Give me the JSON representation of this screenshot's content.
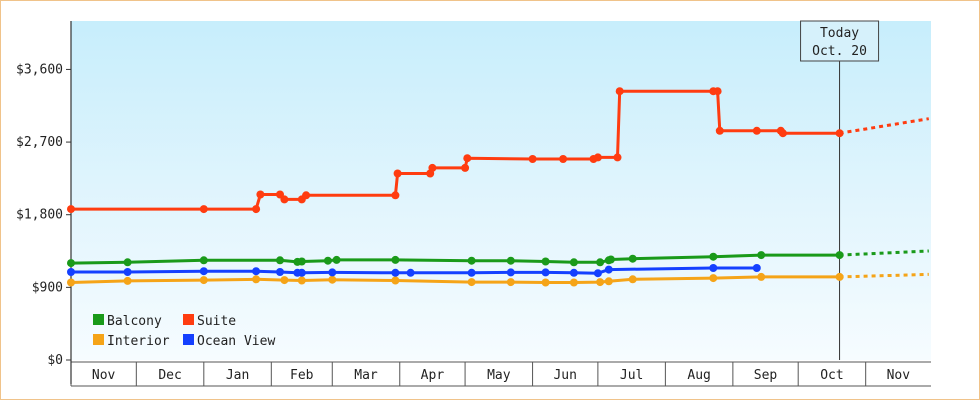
{
  "chart_data": {
    "type": "line",
    "x_axis_type": "date",
    "months": [
      "Nov",
      "Dec",
      "Jan",
      "Feb",
      "Mar",
      "Apr",
      "May",
      "Jun",
      "Jul",
      "Aug",
      "Sep",
      "Oct",
      "Nov"
    ],
    "x_range": [
      "2014-11-01",
      "2015-11-30"
    ],
    "y_ticks": [
      "$0",
      "$900",
      "$1,800",
      "$2,700",
      "$3,600"
    ],
    "ylim": [
      0,
      4200
    ],
    "y_format": "currency-usd",
    "background": "sky-blue gradient",
    "grid": false,
    "legend_position": "bottom-left",
    "today": {
      "title": "Today",
      "date_label": "Oct. 20",
      "date": "2015-10-20"
    },
    "series": [
      {
        "name": "Balcony",
        "color": "#1a9a1a",
        "data": [
          [
            "2014-11-01",
            1200
          ],
          [
            "2014-11-27",
            1210
          ],
          [
            "2015-01-01",
            1235
          ],
          [
            "2015-02-05",
            1235
          ],
          [
            "2015-02-13",
            1215
          ],
          [
            "2015-02-15",
            1220
          ],
          [
            "2015-02-27",
            1230
          ],
          [
            "2015-03-03",
            1240
          ],
          [
            "2015-03-30",
            1240
          ],
          [
            "2015-05-04",
            1230
          ],
          [
            "2015-05-22",
            1230
          ],
          [
            "2015-06-07",
            1220
          ],
          [
            "2015-06-20",
            1210
          ],
          [
            "2015-07-02",
            1210
          ],
          [
            "2015-07-06",
            1235
          ],
          [
            "2015-07-07",
            1245
          ],
          [
            "2015-07-17",
            1255
          ],
          [
            "2015-08-23",
            1280
          ],
          [
            "2015-09-14",
            1300
          ],
          [
            "2015-10-20",
            1300
          ]
        ],
        "forecast": [
          [
            "2015-10-20",
            1300
          ],
          [
            "2015-11-30",
            1350
          ]
        ]
      },
      {
        "name": "Suite",
        "color": "#ff3c10",
        "data": [
          [
            "2014-11-01",
            1870
          ],
          [
            "2015-01-01",
            1870
          ],
          [
            "2015-01-25",
            1870
          ],
          [
            "2015-01-27",
            2050
          ],
          [
            "2015-02-05",
            2050
          ],
          [
            "2015-02-07",
            1990
          ],
          [
            "2015-02-15",
            1990
          ],
          [
            "2015-02-17",
            2040
          ],
          [
            "2015-03-30",
            2040
          ],
          [
            "2015-03-31",
            2310
          ],
          [
            "2015-04-15",
            2310
          ],
          [
            "2015-04-16",
            2380
          ],
          [
            "2015-05-01",
            2380
          ],
          [
            "2015-05-02",
            2500
          ],
          [
            "2015-06-01",
            2490
          ],
          [
            "2015-06-15",
            2490
          ],
          [
            "2015-06-29",
            2490
          ],
          [
            "2015-07-01",
            2510
          ],
          [
            "2015-07-10",
            2510
          ],
          [
            "2015-07-11",
            3330
          ],
          [
            "2015-08-23",
            3330
          ],
          [
            "2015-08-25",
            3330
          ],
          [
            "2015-08-26",
            2840
          ],
          [
            "2015-09-12",
            2840
          ],
          [
            "2015-09-23",
            2840
          ],
          [
            "2015-09-24",
            2810
          ],
          [
            "2015-10-20",
            2810
          ]
        ],
        "forecast": [
          [
            "2015-10-20",
            2810
          ],
          [
            "2015-11-30",
            2990
          ]
        ]
      },
      {
        "name": "Interior",
        "color": "#f5a418",
        "data": [
          [
            "2014-11-01",
            960
          ],
          [
            "2014-11-27",
            980
          ],
          [
            "2015-01-01",
            990
          ],
          [
            "2015-01-25",
            1000
          ],
          [
            "2015-02-07",
            990
          ],
          [
            "2015-02-15",
            985
          ],
          [
            "2015-03-01",
            995
          ],
          [
            "2015-03-30",
            985
          ],
          [
            "2015-05-04",
            965
          ],
          [
            "2015-05-22",
            965
          ],
          [
            "2015-06-07",
            960
          ],
          [
            "2015-06-20",
            960
          ],
          [
            "2015-07-02",
            965
          ],
          [
            "2015-07-06",
            975
          ],
          [
            "2015-07-17",
            1000
          ],
          [
            "2015-08-23",
            1015
          ],
          [
            "2015-09-14",
            1030
          ],
          [
            "2015-10-20",
            1030
          ]
        ],
        "forecast": [
          [
            "2015-10-20",
            1030
          ],
          [
            "2015-11-30",
            1060
          ]
        ]
      },
      {
        "name": "Ocean View",
        "color": "#1440ff",
        "data": [
          [
            "2014-11-01",
            1090
          ],
          [
            "2014-11-27",
            1090
          ],
          [
            "2015-01-01",
            1100
          ],
          [
            "2015-01-25",
            1100
          ],
          [
            "2015-02-05",
            1090
          ],
          [
            "2015-02-13",
            1080
          ],
          [
            "2015-02-15",
            1080
          ],
          [
            "2015-03-01",
            1085
          ],
          [
            "2015-03-30",
            1080
          ],
          [
            "2015-04-06",
            1080
          ],
          [
            "2015-05-04",
            1080
          ],
          [
            "2015-05-22",
            1085
          ],
          [
            "2015-06-07",
            1085
          ],
          [
            "2015-06-20",
            1080
          ],
          [
            "2015-07-01",
            1075
          ],
          [
            "2015-07-06",
            1120
          ],
          [
            "2015-08-23",
            1140
          ],
          [
            "2015-09-12",
            1140
          ]
        ]
      }
    ]
  }
}
